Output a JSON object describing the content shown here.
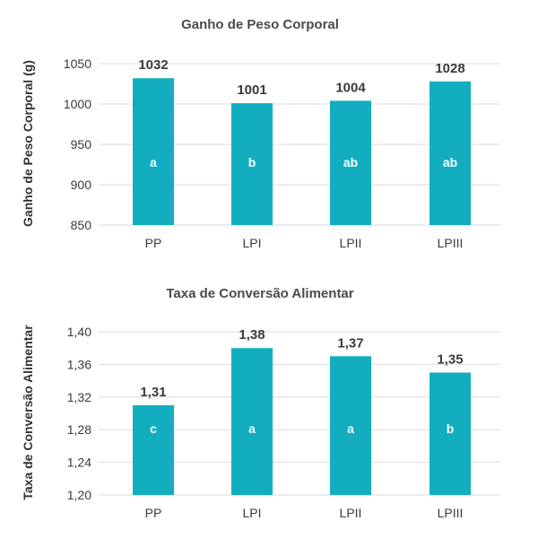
{
  "colors": {
    "bar": "#12aec0",
    "grid": "#d5dde1",
    "text": "#3a3a3a"
  },
  "chart_data": [
    {
      "type": "bar",
      "title": "Ganho de Peso Corporal",
      "ylabel": "Ganho de Peso Corporal (g)",
      "xlabel": "",
      "categories": [
        "PP",
        "LPI",
        "LPII",
        "LPIII"
      ],
      "values": [
        1032,
        1001,
        1004,
        1028
      ],
      "value_labels": [
        "1032",
        "1001",
        "1004",
        "1028"
      ],
      "letters": [
        "a",
        "b",
        "ab",
        "ab"
      ],
      "yticks": [
        850,
        900,
        950,
        1000,
        1050
      ],
      "ytick_labels": [
        "850",
        "900",
        "950",
        "1000",
        "1050"
      ],
      "ylim": [
        850,
        1050
      ],
      "grid": true
    },
    {
      "type": "bar",
      "title": "Taxa de Conversão Alimentar",
      "ylabel": "Taxa de Conversão Alimentar",
      "xlabel": "",
      "categories": [
        "PP",
        "LPI",
        "LPII",
        "LPIII"
      ],
      "values": [
        1.31,
        1.38,
        1.37,
        1.35
      ],
      "value_labels": [
        "1,31",
        "1,38",
        "1,37",
        "1,35"
      ],
      "letters": [
        "c",
        "a",
        "a",
        "b"
      ],
      "yticks": [
        1.2,
        1.24,
        1.28,
        1.32,
        1.36,
        1.4
      ],
      "ytick_labels": [
        "1,20",
        "1,24",
        "1,28",
        "1,32",
        "1,36",
        "1,40"
      ],
      "ylim": [
        1.2,
        1.4
      ],
      "grid": true
    }
  ]
}
